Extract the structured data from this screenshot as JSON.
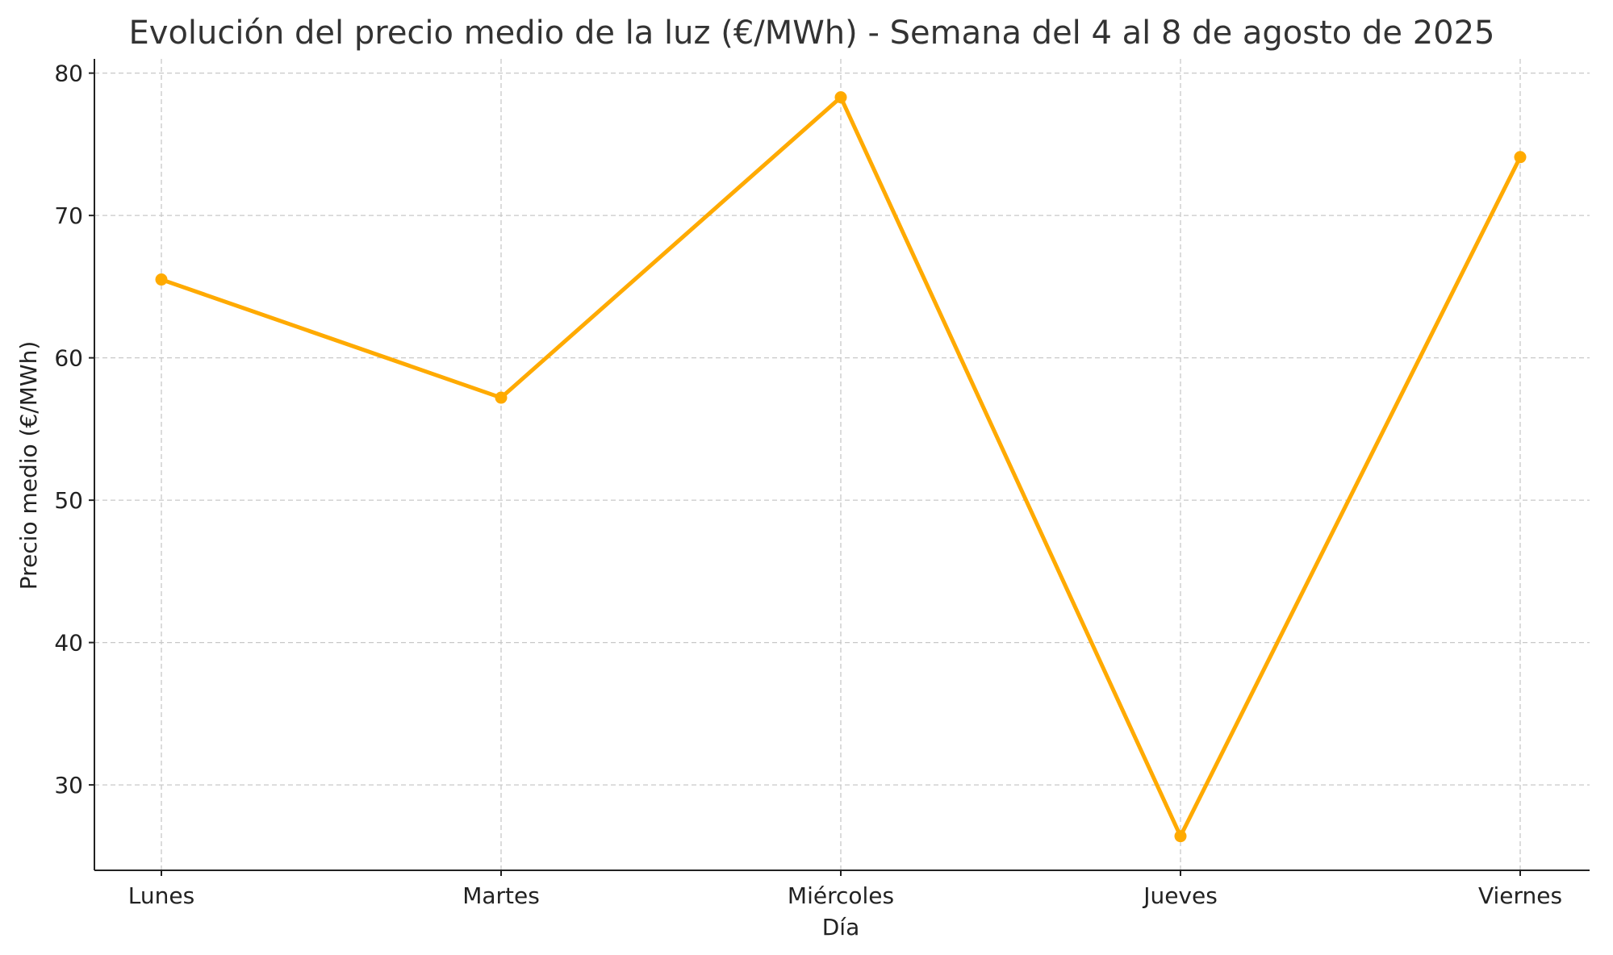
{
  "chart_data": {
    "type": "line",
    "title": "Evolución del precio medio de la luz (€/MWh) - Semana del 4 al 8 de agosto de 2025",
    "xlabel": "Día",
    "ylabel": "Precio medio (€/MWh)",
    "categories": [
      "Lunes",
      "Martes",
      "Miércoles",
      "Jueves",
      "Viernes"
    ],
    "series": [
      {
        "values": [
          65.5,
          57.2,
          78.3,
          26.4,
          74.1
        ],
        "color": "#FFAA00",
        "marker": "circle"
      }
    ],
    "ylim": [
      24,
      81
    ],
    "yticks": [
      30,
      40,
      50,
      60,
      70,
      80
    ],
    "grid": true,
    "grid_style": "dashed",
    "legend": false
  }
}
